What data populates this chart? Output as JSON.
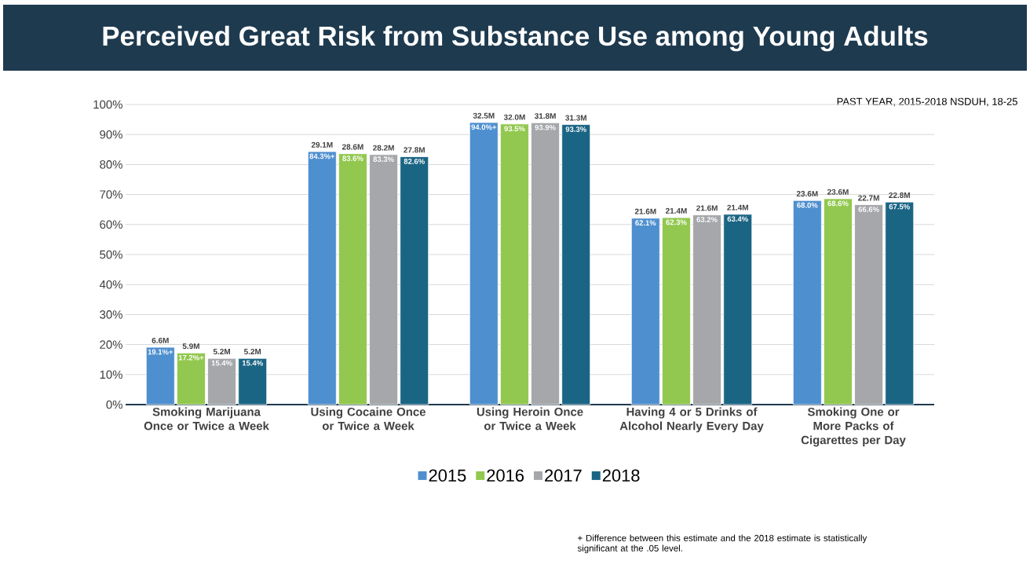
{
  "chart_data": {
    "type": "bar",
    "title": "Perceived Great Risk from Substance Use among Young Adults",
    "subtitle": "PAST YEAR, 2015-2018 NSDUH, 18-25",
    "categories": [
      "Smoking Marijuana Once or Twice a Week",
      "Using Cocaine Once or Twice a Week",
      "Using Heroin Once or Twice a Week",
      "Having 4 or 5 Drinks of Alcohol Nearly Every Day",
      "Smoking One or More Packs of Cigarettes per Day"
    ],
    "series": [
      {
        "name": "2015",
        "color": "#4e8fcf",
        "values": [
          19.1,
          84.3,
          94.0,
          62.1,
          68.0
        ],
        "value_labels": [
          "19.1%+",
          "84.3%+",
          "94.0%+",
          "62.1%",
          "68.0%"
        ]
      },
      {
        "name": "2016",
        "color": "#92c84f",
        "values": [
          17.2,
          83.6,
          93.5,
          62.3,
          68.6
        ],
        "value_labels": [
          "17.2%+",
          "83.6%",
          "93.5%",
          "62.3%",
          "68.6%"
        ]
      },
      {
        "name": "2017",
        "color": "#a5a7aa",
        "values": [
          15.4,
          83.3,
          93.9,
          63.2,
          66.6
        ],
        "value_labels": [
          "15.4%",
          "83.3%",
          "93.9%",
          "63.2%",
          "66.6%"
        ]
      },
      {
        "name": "2018",
        "color": "#1b6584",
        "values": [
          15.4,
          82.6,
          93.3,
          63.4,
          67.5
        ],
        "value_labels": [
          "15.4%",
          "82.6%",
          "93.3%",
          "63.4%",
          "67.5%"
        ]
      }
    ],
    "ylim": [
      0,
      100
    ],
    "yticks": [
      {
        "value": 0,
        "label": "0%"
      },
      {
        "value": 10,
        "label": "10%"
      },
      {
        "value": 20,
        "label": "20%"
      },
      {
        "value": 30,
        "label": "30%"
      },
      {
        "value": 40,
        "label": "40%"
      },
      {
        "value": 50,
        "label": "50%"
      },
      {
        "value": 60,
        "label": "60%"
      },
      {
        "value": 70,
        "label": "70%"
      },
      {
        "value": 80,
        "label": "80%"
      },
      {
        "value": 90,
        "label": "90%"
      },
      {
        "value": 100,
        "label": "100%"
      }
    ],
    "grid": "y",
    "legend": "bottom",
    "annotations": [
      "6.6M",
      "29.1M",
      "32.5M",
      "21.6M",
      "23.6M",
      "5.9M",
      "28.6M",
      "32.0M",
      "21.4M",
      "23.6M",
      "5.2M",
      "28.2M",
      "31.8M",
      "21.6M",
      "22.7M",
      "5.2M",
      "27.8M",
      "31.3M",
      "21.4M",
      "22.8M",
      "+ Difference between this estimate and the 2018 estimate is statistically significant at the .05 level."
    ]
  }
}
